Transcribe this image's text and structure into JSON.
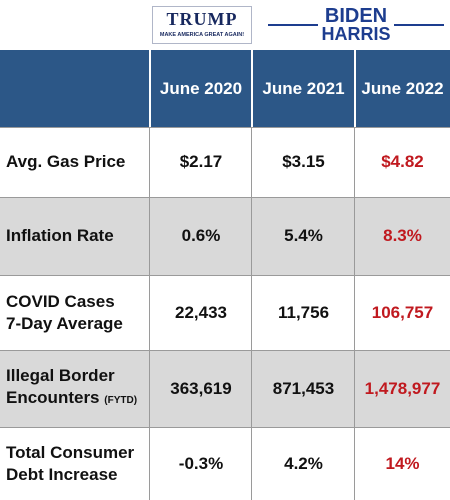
{
  "logos": {
    "trump": {
      "name": "TRUMP",
      "slogan": "MAKE AMERICA GREAT AGAIN!"
    },
    "biden": {
      "name": "BIDEN",
      "running_mate": "HARRIS"
    }
  },
  "table": {
    "columns": [
      "June 2020",
      "June 2021",
      "June 2022"
    ],
    "rows": [
      {
        "label": [
          "Avg. Gas Price"
        ],
        "values": [
          "$2.17",
          "$3.15",
          "$4.82"
        ]
      },
      {
        "label": [
          "Inflation Rate"
        ],
        "values": [
          "0.6%",
          "5.4%",
          "8.3%"
        ]
      },
      {
        "label": [
          "COVID Cases",
          "7-Day Average"
        ],
        "values": [
          "22,433",
          "11,756",
          "106,757"
        ]
      },
      {
        "label": [
          "Illegal Border",
          "Encounters"
        ],
        "note": "(FYTD)",
        "values": [
          "363,619",
          "871,453",
          "1,478,977"
        ]
      },
      {
        "label": [
          "Total Consumer",
          "Debt Increase"
        ],
        "values": [
          "-0.3%",
          "4.2%",
          "14%"
        ]
      }
    ]
  }
}
